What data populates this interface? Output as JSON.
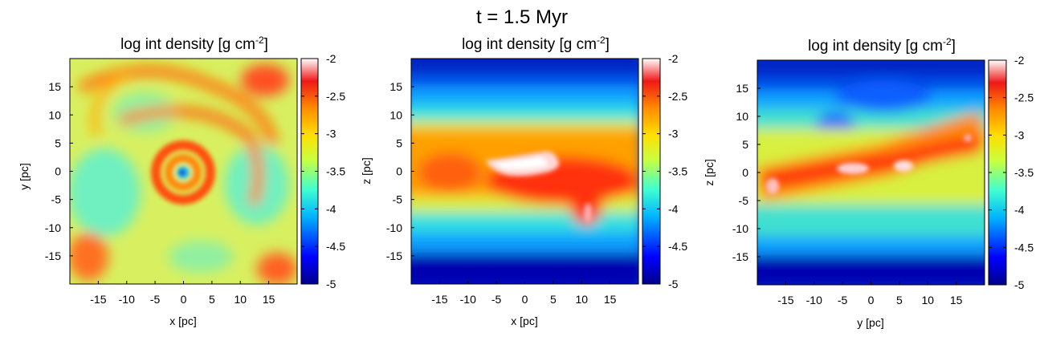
{
  "figure": {
    "title": "t = 1.5 Myr"
  },
  "chart_data": [
    {
      "type": "heatmap",
      "title_text": "log int density [g cm",
      "title_sup": "-2",
      "title_close": "]",
      "xlabel": "x [pc]",
      "ylabel": "y [pc]",
      "xlim": [
        -20,
        20
      ],
      "ylim": [
        -20,
        20
      ],
      "xticks": [
        "-15",
        "-10",
        "-5",
        "0",
        "5",
        "10",
        "15"
      ],
      "yticks": [
        "15",
        "10",
        "5",
        "0",
        "-5",
        "-10",
        "-15"
      ],
      "colorbar": {
        "range": [
          -5,
          -2
        ],
        "ticks": [
          "-2",
          "-2.5",
          "-3",
          "-3.5",
          "-4",
          "-4.5",
          "-5"
        ]
      }
    },
    {
      "type": "heatmap",
      "title_text": "log int density [g cm",
      "title_sup": "-2",
      "title_close": "]",
      "xlabel": "x [pc]",
      "ylabel": "z [pc]",
      "xlim": [
        -20,
        20
      ],
      "ylim": [
        -20,
        20
      ],
      "xticks": [
        "-15",
        "-10",
        "-5",
        "0",
        "5",
        "10",
        "15"
      ],
      "yticks": [
        "15",
        "10",
        "5",
        "0",
        "-5",
        "-10",
        "-15"
      ],
      "colorbar": {
        "range": [
          -5,
          -2
        ],
        "ticks": [
          "-2",
          "-2.5",
          "-3",
          "-3.5",
          "-4",
          "-4.5",
          "-5"
        ]
      }
    },
    {
      "type": "heatmap",
      "title_text": "log int density [g cm",
      "title_sup": "-2",
      "title_close": "]",
      "xlabel": "y [pc]",
      "ylabel": "z [pc]",
      "xlim": [
        -20,
        20
      ],
      "ylim": [
        -20,
        20
      ],
      "xticks": [
        "-15",
        "-10",
        "-5",
        "0",
        "5",
        "10",
        "15"
      ],
      "yticks": [
        "15",
        "10",
        "5",
        "0",
        "-5",
        "-10",
        "-15"
      ],
      "colorbar": {
        "range": [
          -5,
          -2
        ],
        "ticks": [
          "-2",
          "-2.5",
          "-3",
          "-3.5",
          "-4",
          "-4.5",
          "-5"
        ]
      }
    }
  ]
}
